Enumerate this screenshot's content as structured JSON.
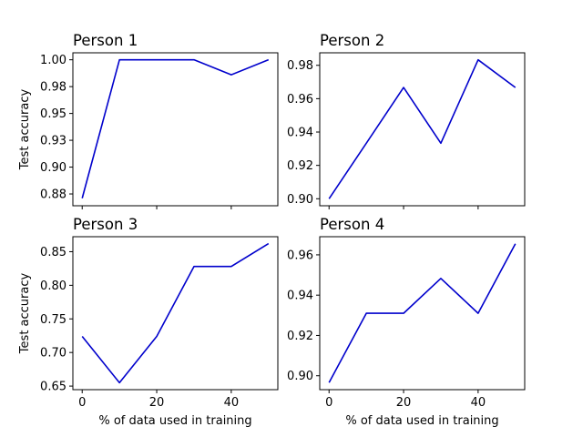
{
  "chart_data": [
    {
      "type": "line",
      "title": "Person 1",
      "xlabel": "",
      "ylabel": "Test accuracy",
      "x": [
        0,
        10,
        20,
        30,
        40,
        50
      ],
      "y": [
        0.871,
        1.0,
        1.0,
        1.0,
        0.986,
        1.0
      ],
      "xlim": [
        -2.5,
        52.5
      ],
      "ylim": [
        0.864,
        1.0065
      ],
      "xticks": [
        0,
        20,
        40
      ],
      "xtick_labels": [
        "",
        "",
        ""
      ],
      "yticks": [
        0.875,
        0.9,
        0.925,
        0.95,
        0.975,
        1.0
      ],
      "ytick_labels": [
        "0.88",
        "0.90",
        "0.93",
        "0.95",
        "0.98",
        "1.00"
      ],
      "line_color": "#0000cc",
      "grid": false
    },
    {
      "type": "line",
      "title": "Person 2",
      "xlabel": "",
      "ylabel": "",
      "x": [
        0,
        10,
        20,
        30,
        40,
        50
      ],
      "y": [
        0.9,
        0.9333,
        0.9667,
        0.9333,
        0.9833,
        0.9667
      ],
      "xlim": [
        -2.5,
        52.5
      ],
      "ylim": [
        0.8958,
        0.9875
      ],
      "xticks": [
        0,
        20,
        40
      ],
      "xtick_labels": [
        "",
        "",
        ""
      ],
      "yticks": [
        0.9,
        0.92,
        0.94,
        0.96,
        0.98
      ],
      "ytick_labels": [
        "0.90",
        "0.92",
        "0.94",
        "0.96",
        "0.98"
      ],
      "line_color": "#0000cc",
      "grid": false
    },
    {
      "type": "line",
      "title": "Person 3",
      "xlabel": "% of data used in training",
      "ylabel": "Test accuracy",
      "x": [
        0,
        10,
        20,
        30,
        40,
        50
      ],
      "y": [
        0.724,
        0.655,
        0.724,
        0.828,
        0.828,
        0.862
      ],
      "xlim": [
        -2.5,
        52.5
      ],
      "ylim": [
        0.6447,
        0.8723
      ],
      "xticks": [
        0,
        20,
        40
      ],
      "xtick_labels": [
        "0",
        "20",
        "40"
      ],
      "yticks": [
        0.65,
        0.7,
        0.75,
        0.8,
        0.85
      ],
      "ytick_labels": [
        "0.65",
        "0.70",
        "0.75",
        "0.80",
        "0.85"
      ],
      "line_color": "#0000cc",
      "grid": false
    },
    {
      "type": "line",
      "title": "Person 4",
      "xlabel": "% of data used in training",
      "ylabel": "",
      "x": [
        0,
        10,
        20,
        30,
        40,
        50
      ],
      "y": [
        0.8966,
        0.931,
        0.931,
        0.9483,
        0.931,
        0.9655
      ],
      "xlim": [
        -2.5,
        52.5
      ],
      "ylim": [
        0.8931,
        0.969
      ],
      "xticks": [
        0,
        20,
        40
      ],
      "xtick_labels": [
        "0",
        "20",
        "40"
      ],
      "yticks": [
        0.9,
        0.92,
        0.94,
        0.96
      ],
      "ytick_labels": [
        "0.90",
        "0.92",
        "0.94",
        "0.96"
      ],
      "line_color": "#0000cc",
      "grid": false
    }
  ]
}
